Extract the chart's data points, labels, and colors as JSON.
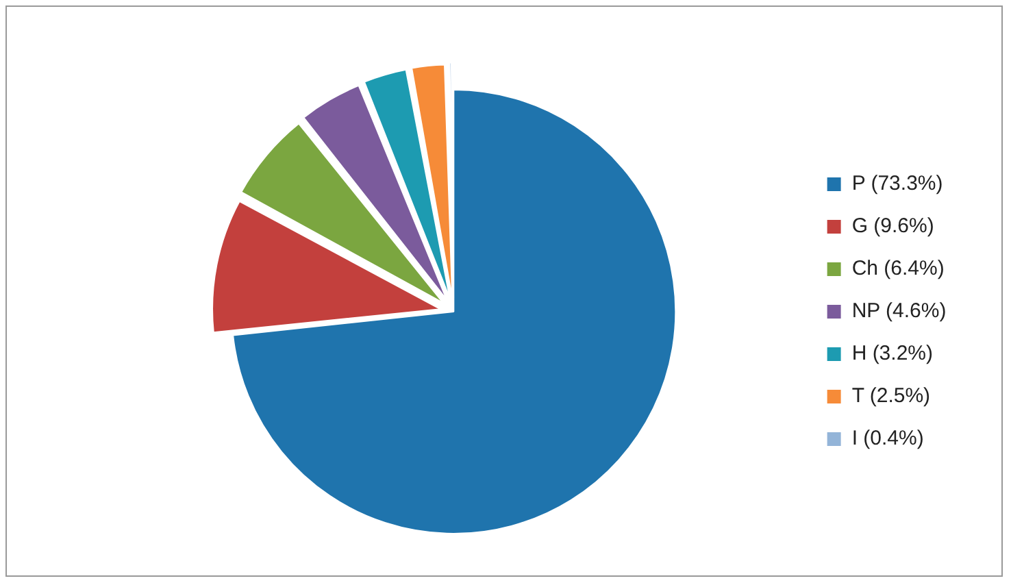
{
  "chart_data": {
    "type": "pie",
    "categories": [
      "P (73.3%)",
      "G (9.6%)",
      "Ch (6.4%)",
      "NP (4.6%)",
      "H (3.2%)",
      "T (2.5%)",
      "I (0.4%)"
    ],
    "values": [
      73.3,
      9.6,
      6.4,
      4.6,
      3.2,
      2.5,
      0.4
    ],
    "colors": [
      "#1f74ad",
      "#c3403d",
      "#7ba640",
      "#7b5b9c",
      "#1d9bb1",
      "#f68b38",
      "#93b4d8"
    ],
    "legend": "right"
  }
}
